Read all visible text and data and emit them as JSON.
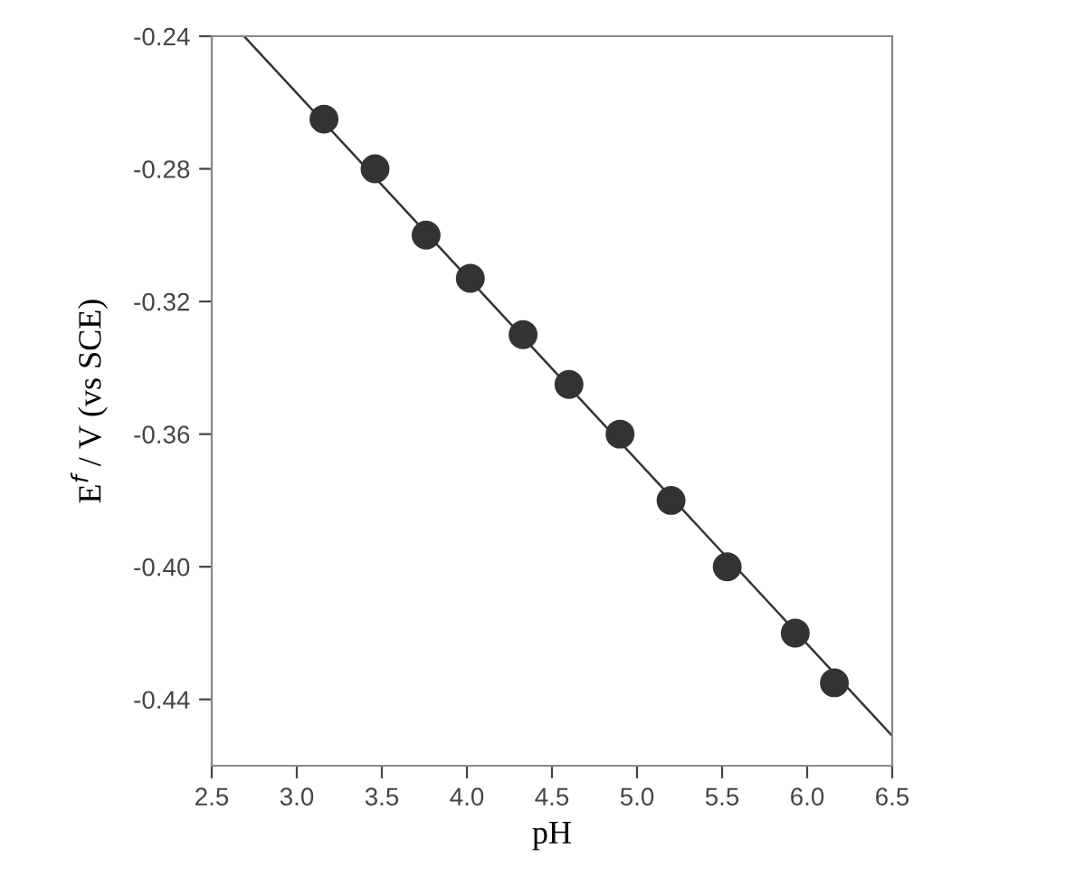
{
  "chart_data": {
    "type": "scatter",
    "xlabel": "pH",
    "ylabel": "E$^{f}$ / V (vs SCE)",
    "x": [
      3.16,
      3.46,
      3.76,
      4.02,
      4.33,
      4.6,
      4.9,
      5.2,
      5.53,
      5.93,
      6.16
    ],
    "series": [
      {
        "color": "#333333",
        "marker": "circle",
        "values": [
          -0.265,
          -0.28,
          -0.3,
          -0.313,
          -0.33,
          -0.345,
          -0.36,
          -0.38,
          -0.4,
          -0.42,
          -0.435
        ]
      },
      {
        "type": "line",
        "color": "#333333",
        "marker": "none",
        "x": [
          2.69,
          6.5
        ],
        "values": [
          -0.24,
          -0.451
        ]
      }
    ],
    "xlim": [
      2.5,
      6.5
    ],
    "ylim": [
      -0.46,
      -0.24
    ],
    "xticks": [
      {
        "value": 2.5,
        "label": "2.5"
      },
      {
        "value": 3.0,
        "label": "3.0"
      },
      {
        "value": 3.5,
        "label": "3.5"
      },
      {
        "value": 4.0,
        "label": "4.0"
      },
      {
        "value": 4.5,
        "label": "4.5"
      },
      {
        "value": 5.0,
        "label": "5.0"
      },
      {
        "value": 5.5,
        "label": "5.5"
      },
      {
        "value": 6.0,
        "label": "6.0"
      },
      {
        "value": 6.5,
        "label": "6.5"
      }
    ],
    "yticks": [
      -0.24,
      -0.28,
      {
        "value": -0.32,
        "label": "-0.32"
      },
      -0.36,
      {
        "value": -0.4,
        "label": "-0.40"
      },
      -0.44
    ],
    "grid": false,
    "legend": false
  }
}
